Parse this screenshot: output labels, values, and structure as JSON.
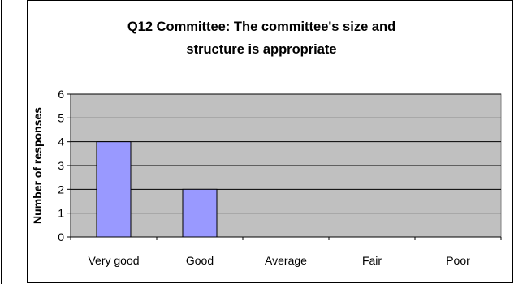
{
  "chart_data": {
    "type": "bar",
    "title_line1": "Q12 Committee: The committee's size and",
    "title_line2": "structure is appropriate",
    "xlabel": "",
    "ylabel": "Number of responses",
    "categories": [
      "Very good",
      "Good",
      "Average",
      "Fair",
      "Poor"
    ],
    "values": [
      4,
      2,
      0,
      0,
      0
    ],
    "ylim": [
      0,
      6
    ],
    "yticks": [
      "0",
      "1",
      "2",
      "3",
      "4",
      "5",
      "6"
    ],
    "grid": true,
    "legend": "none",
    "colors": {
      "bar_fill": "#9999ff",
      "bar_stroke": "#000000",
      "plot_background": "#c0c0c0",
      "gridline": "#000000"
    }
  }
}
